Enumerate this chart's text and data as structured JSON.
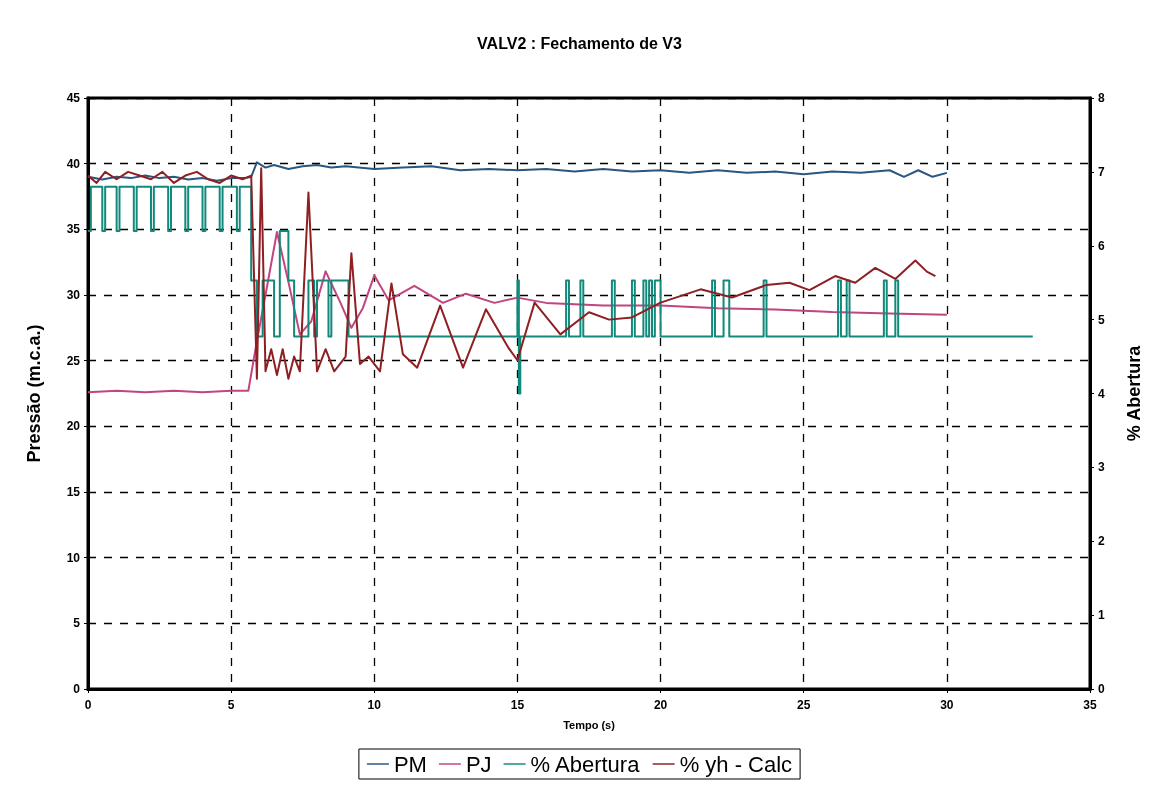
{
  "chart_data": {
    "type": "line",
    "title": "VALV2 : Fechamento de V3",
    "xlabel": "Tempo (s)",
    "ylabel": "Pressão (m.c.a.)",
    "y2label": "% Abertura",
    "xlim": [
      0,
      35
    ],
    "xticks": [
      0,
      5,
      10,
      15,
      20,
      25,
      30,
      35
    ],
    "ylim": [
      0,
      45
    ],
    "yticks": [
      0,
      5,
      10,
      15,
      20,
      25,
      30,
      35,
      40,
      45
    ],
    "y2lim": [
      0,
      8
    ],
    "y2ticks": [
      0,
      1,
      2,
      3,
      4,
      5,
      6,
      7,
      8
    ],
    "grid": true,
    "legend": "bottom",
    "marker": "none",
    "series": [
      {
        "name": "PM",
        "color": "#2b5680",
        "x": [
          0,
          0.5,
          1,
          1.5,
          2,
          2.5,
          3,
          3.5,
          4,
          4.5,
          5,
          5.5,
          5.7,
          5.9,
          6.2,
          6.5,
          7,
          7.5,
          8,
          8.5,
          9,
          10,
          11,
          12,
          13,
          14,
          15,
          16,
          17,
          18,
          19,
          20,
          21,
          22,
          23,
          24,
          25,
          26,
          27,
          28,
          28.5,
          29,
          29.5,
          30
        ],
        "values": [
          39.0,
          38.8,
          39.0,
          38.9,
          39.1,
          38.9,
          39.0,
          38.8,
          38.9,
          38.7,
          38.9,
          38.9,
          39.0,
          40.1,
          39.7,
          39.9,
          39.6,
          39.8,
          39.9,
          39.7,
          39.8,
          39.6,
          39.7,
          39.8,
          39.5,
          39.6,
          39.5,
          39.6,
          39.4,
          39.6,
          39.4,
          39.5,
          39.3,
          39.5,
          39.3,
          39.4,
          39.2,
          39.4,
          39.3,
          39.5,
          39.0,
          39.5,
          39.0,
          39.3
        ]
      },
      {
        "name": "PJ",
        "color": "#c2457f",
        "x": [
          0,
          1,
          2,
          3,
          4,
          5,
          5.6,
          5.9,
          6.2,
          6.6,
          7.0,
          7.4,
          7.8,
          8.3,
          8.8,
          9.2,
          9.6,
          10.0,
          10.5,
          11.4,
          12.4,
          13.2,
          14.2,
          15,
          16,
          17,
          18,
          19,
          20,
          22,
          24,
          26,
          28,
          30
        ],
        "values": [
          22.6,
          22.7,
          22.6,
          22.7,
          22.6,
          22.7,
          22.7,
          26.5,
          30,
          34.8,
          31,
          27,
          28,
          31.8,
          29.5,
          27.5,
          29,
          31.5,
          29.6,
          30.7,
          29.4,
          30.1,
          29.4,
          29.8,
          29.4,
          29.3,
          29.2,
          29.2,
          29.2,
          29.0,
          28.9,
          28.7,
          28.6,
          28.5
        ]
      },
      {
        "name": "% Abertura",
        "color": "#12897a",
        "axis": "y2",
        "x": [
          0,
          0.1,
          0.1,
          0.5,
          0.5,
          0.6,
          0.6,
          1.0,
          1.0,
          1.1,
          1.1,
          1.6,
          1.6,
          1.7,
          1.7,
          2.2,
          2.2,
          2.3,
          2.3,
          2.8,
          2.8,
          2.9,
          2.9,
          3.4,
          3.4,
          3.5,
          3.5,
          4.0,
          4.0,
          4.1,
          4.1,
          4.6,
          4.6,
          4.7,
          4.7,
          5.2,
          5.2,
          5.3,
          5.3,
          5.7,
          5.7,
          5.9,
          5.9,
          6.1,
          6.1,
          6.5,
          6.5,
          6.7,
          6.7,
          7.0,
          7.0,
          7.2,
          7.2,
          7.7,
          7.7,
          7.9,
          7.9,
          8.0,
          8.0,
          8.4,
          8.4,
          8.5,
          8.5,
          9.1,
          9.1,
          15.0,
          15.0,
          15.05,
          15.05,
          15.1,
          15.1,
          16.7,
          16.7,
          16.8,
          16.8,
          17.2,
          17.2,
          17.3,
          17.3,
          18.3,
          18.3,
          18.4,
          18.4,
          19.0,
          19.0,
          19.1,
          19.1,
          19.4,
          19.4,
          19.5,
          19.5,
          19.6,
          19.6,
          19.7,
          19.7,
          19.8,
          19.8,
          20.0,
          20.0,
          21.8,
          21.8,
          21.9,
          21.9,
          22.2,
          22.2,
          22.4,
          22.4,
          23.6,
          23.6,
          23.7,
          23.7,
          26.2,
          26.2,
          26.3,
          26.3,
          26.5,
          26.5,
          26.6,
          26.6,
          27.8,
          27.8,
          27.9,
          27.9,
          28.2,
          28.2,
          28.3,
          28.3,
          33.0
        ],
        "values": [
          6.2,
          6.2,
          6.8,
          6.8,
          6.2,
          6.2,
          6.8,
          6.8,
          6.2,
          6.2,
          6.8,
          6.8,
          6.2,
          6.2,
          6.8,
          6.8,
          6.2,
          6.2,
          6.8,
          6.8,
          6.2,
          6.2,
          6.8,
          6.8,
          6.2,
          6.2,
          6.8,
          6.8,
          6.2,
          6.2,
          6.8,
          6.8,
          6.2,
          6.2,
          6.8,
          6.8,
          6.2,
          6.2,
          6.8,
          6.8,
          5.53,
          5.53,
          4.77,
          4.77,
          5.53,
          5.53,
          4.77,
          4.77,
          6.2,
          6.2,
          5.53,
          5.53,
          4.77,
          4.77,
          5.53,
          5.53,
          4.77,
          4.77,
          5.53,
          5.53,
          4.77,
          4.77,
          5.53,
          5.53,
          4.77,
          4.77,
          5.53,
          5.53,
          4.0,
          4.0,
          4.77,
          4.77,
          5.53,
          5.53,
          4.77,
          4.77,
          5.53,
          5.53,
          4.77,
          4.77,
          5.53,
          5.53,
          4.77,
          4.77,
          5.53,
          5.53,
          4.77,
          4.77,
          5.53,
          5.53,
          4.77,
          4.77,
          5.53,
          5.53,
          4.77,
          4.77,
          5.53,
          5.53,
          4.77,
          4.77,
          5.53,
          5.53,
          4.77,
          4.77,
          5.53,
          5.53,
          4.77,
          4.77,
          5.53,
          5.53,
          4.77,
          4.77,
          5.53,
          5.53,
          4.77,
          4.77,
          5.53,
          5.53,
          4.77,
          4.77,
          5.53,
          5.53,
          4.77,
          4.77,
          5.53,
          5.53,
          4.77,
          4.77
        ]
      },
      {
        "name": "% yh - Calc",
        "color": "#8e1f22",
        "axis": "y2",
        "x": [
          0,
          0.3,
          0.6,
          1,
          1.4,
          1.8,
          2.2,
          2.6,
          3,
          3.4,
          3.8,
          4.2,
          4.6,
          5,
          5.4,
          5.7,
          5.9,
          6.05,
          6.2,
          6.4,
          6.6,
          6.8,
          7.0,
          7.2,
          7.4,
          7.7,
          8.0,
          8.3,
          8.6,
          9.0,
          9.2,
          9.5,
          9.8,
          10.2,
          10.6,
          11.0,
          11.5,
          12.3,
          13.1,
          13.9,
          14.7,
          15.0,
          15.6,
          16.5,
          17.5,
          18.2,
          19,
          20,
          21.4,
          22.5,
          23.7,
          24.5,
          25.2,
          26.1,
          26.8,
          27.5,
          28.2,
          28.9,
          29.3,
          29.6
        ],
        "values": [
          6.95,
          6.85,
          7.0,
          6.9,
          7.0,
          6.95,
          6.9,
          7.0,
          6.85,
          6.95,
          7.0,
          6.9,
          6.85,
          6.95,
          6.9,
          6.95,
          4.2,
          7.05,
          4.3,
          4.6,
          4.25,
          4.6,
          4.2,
          4.5,
          4.3,
          6.72,
          4.3,
          4.6,
          4.3,
          4.5,
          5.9,
          4.4,
          4.5,
          4.3,
          5.49,
          4.53,
          4.35,
          5.19,
          4.35,
          5.14,
          4.61,
          4.45,
          5.23,
          4.8,
          5.1,
          5.0,
          5.03,
          5.23,
          5.41,
          5.3,
          5.47,
          5.5,
          5.4,
          5.59,
          5.5,
          5.7,
          5.55,
          5.8,
          5.65,
          5.59
        ]
      }
    ]
  }
}
